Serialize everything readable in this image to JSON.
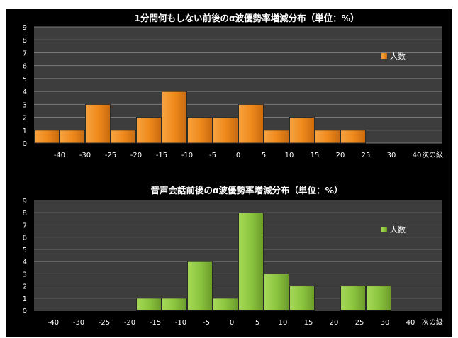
{
  "chart_data": [
    {
      "type": "bar",
      "title": "1分間何もしない前後のα波優勢率増減分布（単位：%）",
      "categories": [
        "-40",
        "-30",
        "-25",
        "-20",
        "-15",
        "-10",
        "-5",
        "0",
        "5",
        "10",
        "15",
        "20",
        "25",
        "30",
        "40"
      ],
      "values": [
        1,
        1,
        3,
        1,
        2,
        4,
        2,
        2,
        3,
        1,
        2,
        1,
        1,
        0,
        0
      ],
      "x_axis_label": "次の級",
      "ylim": [
        0,
        9
      ],
      "y_ticks": [
        0,
        1,
        2,
        3,
        4,
        5,
        6,
        7,
        8,
        9
      ],
      "grid": true,
      "legend": {
        "label": "人数",
        "placement": "right"
      },
      "bar_color": "#f08a1c"
    },
    {
      "type": "bar",
      "title": "音声会話前後のα波優勢率増減分布（単位：%）",
      "categories": [
        "-40",
        "-30",
        "-25",
        "-20",
        "-15",
        "-10",
        "-5",
        "0",
        "5",
        "10",
        "15",
        "20",
        "25",
        "30",
        "40"
      ],
      "values": [
        0,
        0,
        0,
        0,
        1,
        1,
        4,
        1,
        8,
        3,
        2,
        0,
        2,
        2,
        0
      ],
      "x_axis_label": "次の級",
      "ylim": [
        0,
        9
      ],
      "y_ticks": [
        0,
        1,
        2,
        3,
        4,
        5,
        6,
        7,
        8,
        9
      ],
      "grid": true,
      "legend": {
        "label": "人数",
        "placement": "right"
      },
      "bar_color": "#8cc63f"
    }
  ]
}
